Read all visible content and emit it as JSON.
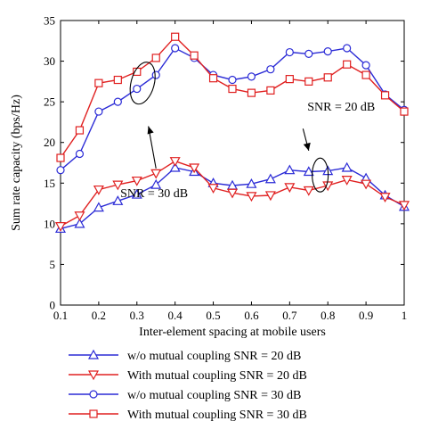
{
  "chart_data": {
    "type": "line",
    "title": "",
    "xlabel": "Inter-element spacing at mobile users",
    "ylabel": "Sum rate capacity (bps/Hz)",
    "xlim": [
      0.1,
      1.0
    ],
    "ylim": [
      0,
      35
    ],
    "x_ticks": [
      0.1,
      0.2,
      0.3,
      0.4,
      0.5,
      0.6,
      0.7,
      0.8,
      0.9,
      1.0
    ],
    "x_tick_labels": [
      "0.1",
      "0.2",
      "0.3",
      "0.4",
      "0.5",
      "0.6",
      "0.7",
      "0.8",
      "0.9",
      "1"
    ],
    "y_ticks": [
      0,
      5,
      10,
      15,
      20,
      25,
      30,
      35
    ],
    "y_tick_labels": [
      "0",
      "5",
      "10",
      "15",
      "20",
      "25",
      "30",
      "35"
    ],
    "grid": false,
    "legend_position": "below",
    "x": [
      0.1,
      0.15,
      0.2,
      0.25,
      0.3,
      0.35,
      0.4,
      0.45,
      0.5,
      0.55,
      0.6,
      0.65,
      0.7,
      0.75,
      0.8,
      0.85,
      0.9,
      0.95,
      1.0
    ],
    "series": [
      {
        "name": "w/o mutual coupling SNR = 20 dB",
        "color": "#2b2bd6",
        "marker": "triangle-up",
        "values": [
          9.4,
          10.0,
          12.0,
          12.8,
          13.6,
          14.8,
          16.9,
          16.4,
          15.0,
          14.7,
          14.9,
          15.5,
          16.6,
          16.4,
          16.5,
          16.9,
          15.6,
          13.5,
          12.1
        ]
      },
      {
        "name": "With mutual coupling SNR = 20 dB",
        "color": "#e02020",
        "marker": "triangle-down",
        "values": [
          9.7,
          11.0,
          14.2,
          14.8,
          15.3,
          16.2,
          17.7,
          16.9,
          14.4,
          13.8,
          13.4,
          13.5,
          14.5,
          14.1,
          14.7,
          15.4,
          14.9,
          13.3,
          12.3
        ]
      },
      {
        "name": "w/o mutual coupling SNR = 30 dB",
        "color": "#2b2bd6",
        "marker": "circle",
        "values": [
          16.6,
          18.6,
          23.8,
          25.0,
          26.6,
          28.3,
          31.6,
          30.4,
          28.3,
          27.7,
          28.1,
          29.0,
          31.1,
          30.9,
          31.2,
          31.6,
          29.5,
          25.9,
          24.0
        ]
      },
      {
        "name": "With mutual coupling SNR = 30 dB",
        "color": "#e02020",
        "marker": "square",
        "values": [
          18.1,
          21.5,
          27.3,
          27.7,
          28.7,
          30.4,
          33.0,
          30.7,
          27.9,
          26.6,
          26.1,
          26.4,
          27.8,
          27.5,
          28.0,
          29.6,
          28.3,
          25.8,
          23.8
        ]
      }
    ],
    "annotations": [
      {
        "text": "SNR = 30 dB",
        "x": 0.345,
        "y": 13.3,
        "ellipse_center": [
          0.315,
          27.3
        ],
        "arrow_to": [
          0.33,
          22.0
        ]
      },
      {
        "text": "SNR = 20 dB",
        "x": 0.835,
        "y": 23.9,
        "ellipse_center": [
          0.78,
          16.0
        ],
        "arrow_to": [
          0.75,
          19.0
        ]
      }
    ]
  }
}
